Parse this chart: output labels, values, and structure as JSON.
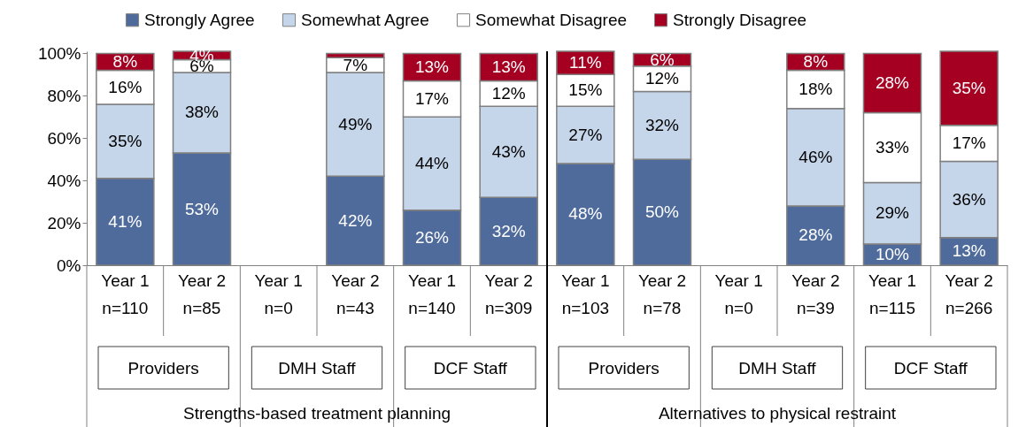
{
  "chart_data": {
    "type": "bar",
    "stacked": true,
    "legend": "top",
    "grid": false,
    "categories": [
      "Year 1\nn=110",
      "Year 2\nn=85",
      "Year 1\nn=0",
      "Year 2\nn=43",
      "Year 1\nn=140",
      "Year 2\nn=309",
      "Year 1\nn=103",
      "Year 2\nn=78",
      "Year 1\nn=0",
      "Year 2\nn=39",
      "Year 1\nn=115",
      "Year 2\nn=266"
    ],
    "series": [
      {
        "name": "Strongly Agree",
        "color": "#4f6b9b",
        "values": [
          41,
          53,
          null,
          42,
          26,
          32,
          48,
          50,
          null,
          28,
          10,
          13
        ],
        "value_labels": [
          "41%",
          "53%",
          null,
          "42%",
          "26%",
          "32%",
          "48%",
          "50%",
          null,
          "28%",
          "10%",
          "13%"
        ]
      },
      {
        "name": "Somewhat Agree",
        "color": "#c5d5ea",
        "values": [
          35,
          38,
          null,
          49,
          44,
          43,
          27,
          32,
          null,
          46,
          29,
          36
        ],
        "value_labels": [
          "35%",
          "38%",
          null,
          "49%",
          "44%",
          "43%",
          "27%",
          "32%",
          null,
          "46%",
          "29%",
          "36%"
        ]
      },
      {
        "name": "Somewhat Disagree",
        "color": "#ffffff",
        "values": [
          16,
          6,
          null,
          7,
          17,
          12,
          15,
          12,
          null,
          18,
          33,
          17
        ],
        "value_labels": [
          "16%",
          "6%",
          null,
          "7%",
          "17%",
          "12%",
          "15%",
          "12%",
          null,
          "18%",
          "33%",
          "17%"
        ]
      },
      {
        "name": "Strongly Disagree",
        "color": "#a50021",
        "values": [
          8,
          4,
          null,
          2,
          13,
          13,
          11,
          6,
          null,
          8,
          28,
          35
        ],
        "value_labels": [
          "8%",
          "4%",
          null,
          null,
          "13%",
          "13%",
          "11%",
          "6%",
          null,
          "8%",
          "28%",
          "35%"
        ]
      }
    ],
    "ylim": [
      0,
      101
    ],
    "yticks": [
      {
        "value": 0,
        "label": "0%"
      },
      {
        "value": 20,
        "label": "20%"
      },
      {
        "value": 40,
        "label": "40%"
      },
      {
        "value": 60,
        "label": "60%"
      },
      {
        "value": 80,
        "label": "80%"
      },
      {
        "value": 100,
        "label": "100%"
      }
    ],
    "annotations": [
      "Providers",
      "DMH Staff",
      "DCF Staff",
      "Providers",
      "DMH Staff",
      "DCF Staff",
      "Strengths-based treatment planning",
      "Alternatives to physical restraint"
    ]
  }
}
